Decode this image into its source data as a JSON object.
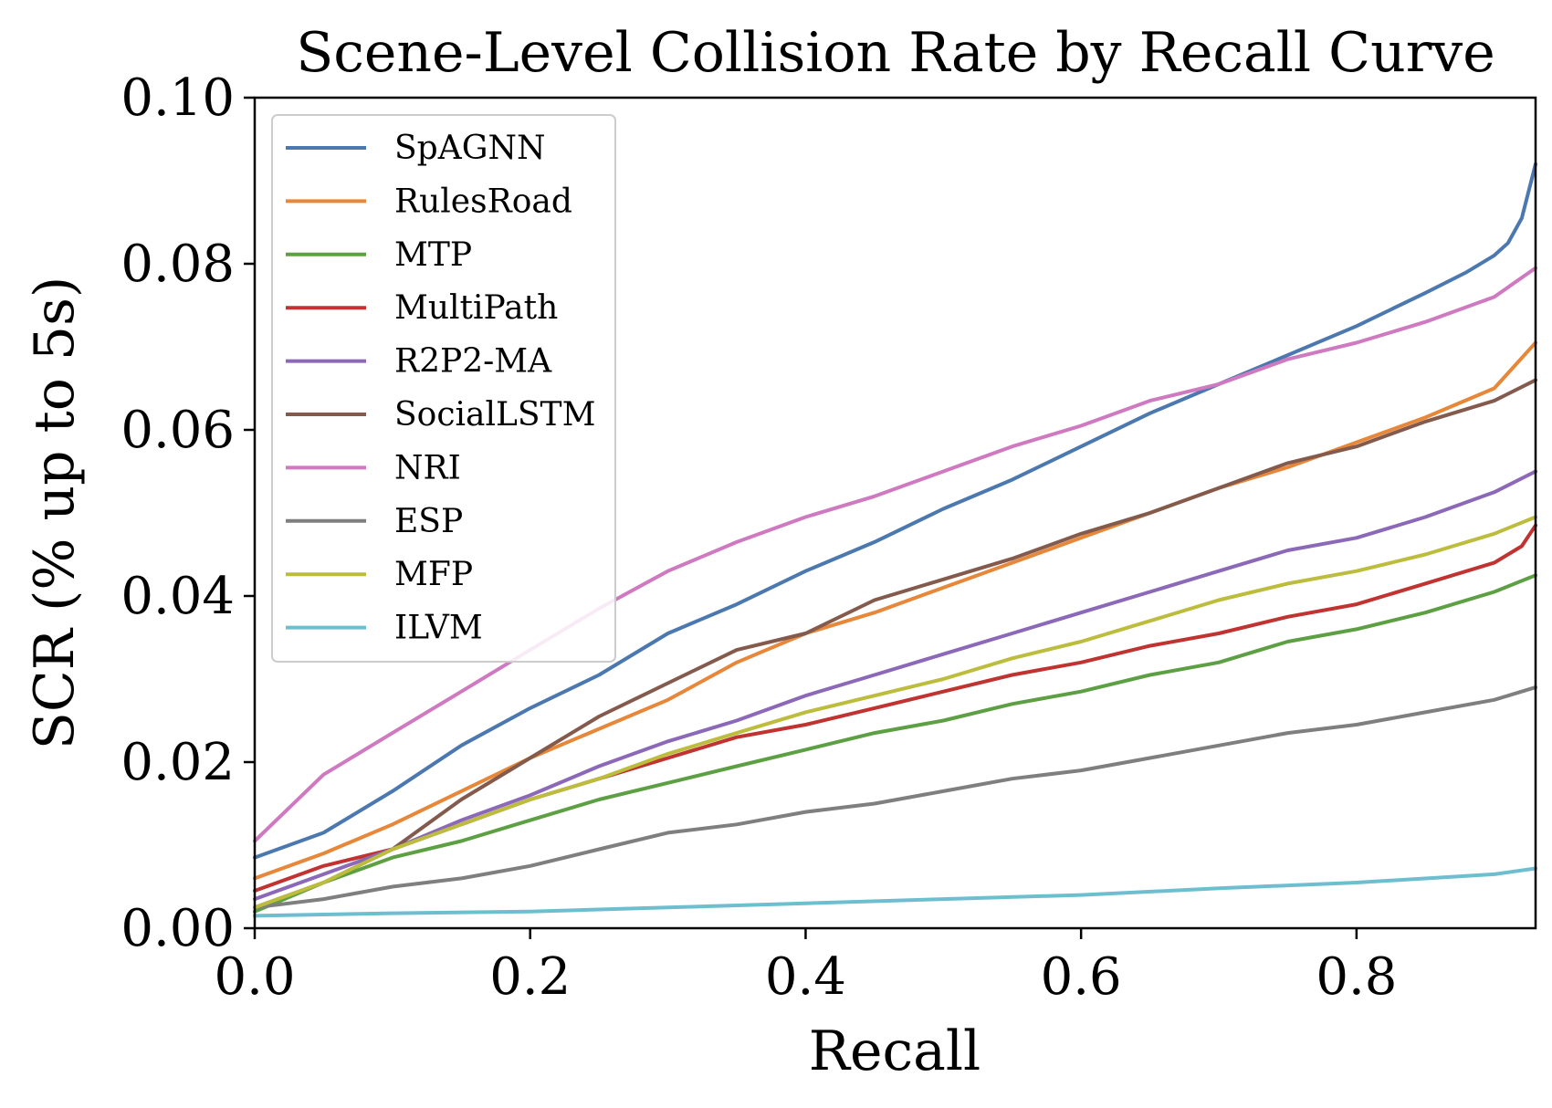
{
  "chart_data": {
    "type": "line",
    "title": "Scene-Level Collision Rate by Recall Curve",
    "xlabel": "Recall",
    "ylabel": "SCR (% up to 5s)",
    "xlim": [
      0,
      0.93
    ],
    "ylim": [
      0,
      0.1
    ],
    "xticks": [
      "0.0",
      "0.2",
      "0.4",
      "0.6",
      "0.8"
    ],
    "yticks": [
      "0.00",
      "0.02",
      "0.04",
      "0.06",
      "0.08",
      "0.10"
    ],
    "grid": false,
    "legend_position": "upper-left",
    "series": [
      {
        "name": "SpAGNN",
        "color": "#4c78b0",
        "points": [
          [
            0,
            0.0085
          ],
          [
            0.05,
            0.0115
          ],
          [
            0.1,
            0.0165
          ],
          [
            0.15,
            0.022
          ],
          [
            0.2,
            0.0265
          ],
          [
            0.25,
            0.0305
          ],
          [
            0.3,
            0.0355
          ],
          [
            0.35,
            0.039
          ],
          [
            0.4,
            0.043
          ],
          [
            0.45,
            0.0465
          ],
          [
            0.5,
            0.0505
          ],
          [
            0.55,
            0.054
          ],
          [
            0.6,
            0.058
          ],
          [
            0.65,
            0.062
          ],
          [
            0.7,
            0.0655
          ],
          [
            0.75,
            0.069
          ],
          [
            0.8,
            0.0725
          ],
          [
            0.85,
            0.0765
          ],
          [
            0.88,
            0.079
          ],
          [
            0.9,
            0.081
          ],
          [
            0.91,
            0.0825
          ],
          [
            0.92,
            0.0855
          ],
          [
            0.93,
            0.092
          ]
        ]
      },
      {
        "name": "RulesRoad",
        "color": "#e7873a",
        "points": [
          [
            0,
            0.006
          ],
          [
            0.05,
            0.009
          ],
          [
            0.1,
            0.0125
          ],
          [
            0.15,
            0.0165
          ],
          [
            0.2,
            0.0205
          ],
          [
            0.25,
            0.024
          ],
          [
            0.3,
            0.0275
          ],
          [
            0.35,
            0.032
          ],
          [
            0.4,
            0.0355
          ],
          [
            0.45,
            0.038
          ],
          [
            0.5,
            0.041
          ],
          [
            0.55,
            0.044
          ],
          [
            0.6,
            0.047
          ],
          [
            0.65,
            0.05
          ],
          [
            0.7,
            0.053
          ],
          [
            0.75,
            0.0555
          ],
          [
            0.8,
            0.0585
          ],
          [
            0.85,
            0.0615
          ],
          [
            0.9,
            0.065
          ],
          [
            0.93,
            0.0705
          ]
        ]
      },
      {
        "name": "MTP",
        "color": "#5da043",
        "points": [
          [
            0,
            0.002
          ],
          [
            0.05,
            0.0055
          ],
          [
            0.1,
            0.0085
          ],
          [
            0.15,
            0.0105
          ],
          [
            0.2,
            0.013
          ],
          [
            0.25,
            0.0155
          ],
          [
            0.3,
            0.0175
          ],
          [
            0.35,
            0.0195
          ],
          [
            0.4,
            0.0215
          ],
          [
            0.45,
            0.0235
          ],
          [
            0.5,
            0.025
          ],
          [
            0.55,
            0.027
          ],
          [
            0.6,
            0.0285
          ],
          [
            0.65,
            0.0305
          ],
          [
            0.7,
            0.032
          ],
          [
            0.75,
            0.0345
          ],
          [
            0.8,
            0.036
          ],
          [
            0.85,
            0.038
          ],
          [
            0.9,
            0.0405
          ],
          [
            0.93,
            0.0425
          ]
        ]
      },
      {
        "name": "MultiPath",
        "color": "#c03331",
        "points": [
          [
            0,
            0.0045
          ],
          [
            0.05,
            0.0075
          ],
          [
            0.1,
            0.0095
          ],
          [
            0.15,
            0.0125
          ],
          [
            0.2,
            0.0155
          ],
          [
            0.25,
            0.018
          ],
          [
            0.3,
            0.0205
          ],
          [
            0.35,
            0.023
          ],
          [
            0.4,
            0.0245
          ],
          [
            0.45,
            0.0265
          ],
          [
            0.5,
            0.0285
          ],
          [
            0.55,
            0.0305
          ],
          [
            0.6,
            0.032
          ],
          [
            0.65,
            0.034
          ],
          [
            0.7,
            0.0355
          ],
          [
            0.75,
            0.0375
          ],
          [
            0.8,
            0.039
          ],
          [
            0.85,
            0.0415
          ],
          [
            0.9,
            0.044
          ],
          [
            0.92,
            0.046
          ],
          [
            0.93,
            0.0485
          ]
        ]
      },
      {
        "name": "R2P2-MA",
        "color": "#8b69b8",
        "points": [
          [
            0,
            0.0035
          ],
          [
            0.05,
            0.0065
          ],
          [
            0.1,
            0.0095
          ],
          [
            0.15,
            0.013
          ],
          [
            0.2,
            0.016
          ],
          [
            0.25,
            0.0195
          ],
          [
            0.3,
            0.0225
          ],
          [
            0.35,
            0.025
          ],
          [
            0.4,
            0.028
          ],
          [
            0.45,
            0.0305
          ],
          [
            0.5,
            0.033
          ],
          [
            0.55,
            0.0355
          ],
          [
            0.6,
            0.038
          ],
          [
            0.65,
            0.0405
          ],
          [
            0.7,
            0.043
          ],
          [
            0.75,
            0.0455
          ],
          [
            0.8,
            0.047
          ],
          [
            0.85,
            0.0495
          ],
          [
            0.9,
            0.0525
          ],
          [
            0.93,
            0.055
          ]
        ]
      },
      {
        "name": "SocialLSTM",
        "color": "#845a4d",
        "points": [
          [
            0,
            0.0025
          ],
          [
            0.05,
            0.0055
          ],
          [
            0.1,
            0.0095
          ],
          [
            0.15,
            0.0155
          ],
          [
            0.2,
            0.0205
          ],
          [
            0.25,
            0.0255
          ],
          [
            0.3,
            0.0295
          ],
          [
            0.35,
            0.0335
          ],
          [
            0.4,
            0.0355
          ],
          [
            0.45,
            0.0395
          ],
          [
            0.5,
            0.042
          ],
          [
            0.55,
            0.0445
          ],
          [
            0.6,
            0.0475
          ],
          [
            0.65,
            0.05
          ],
          [
            0.7,
            0.053
          ],
          [
            0.75,
            0.056
          ],
          [
            0.8,
            0.058
          ],
          [
            0.85,
            0.061
          ],
          [
            0.9,
            0.0635
          ],
          [
            0.93,
            0.066
          ]
        ]
      },
      {
        "name": "NRI",
        "color": "#cf79c0",
        "points": [
          [
            0,
            0.0105
          ],
          [
            0.05,
            0.0185
          ],
          [
            0.1,
            0.0235
          ],
          [
            0.15,
            0.0285
          ],
          [
            0.2,
            0.0335
          ],
          [
            0.25,
            0.0385
          ],
          [
            0.3,
            0.043
          ],
          [
            0.35,
            0.0465
          ],
          [
            0.4,
            0.0495
          ],
          [
            0.45,
            0.052
          ],
          [
            0.5,
            0.055
          ],
          [
            0.55,
            0.058
          ],
          [
            0.6,
            0.0605
          ],
          [
            0.65,
            0.0635
          ],
          [
            0.7,
            0.0655
          ],
          [
            0.75,
            0.0685
          ],
          [
            0.8,
            0.0705
          ],
          [
            0.85,
            0.073
          ],
          [
            0.9,
            0.076
          ],
          [
            0.93,
            0.0795
          ]
        ]
      },
      {
        "name": "ESP",
        "color": "#7f7f7f",
        "points": [
          [
            0,
            0.0025
          ],
          [
            0.05,
            0.0035
          ],
          [
            0.1,
            0.005
          ],
          [
            0.15,
            0.006
          ],
          [
            0.2,
            0.0075
          ],
          [
            0.25,
            0.0095
          ],
          [
            0.3,
            0.0115
          ],
          [
            0.35,
            0.0125
          ],
          [
            0.4,
            0.014
          ],
          [
            0.45,
            0.015
          ],
          [
            0.5,
            0.0165
          ],
          [
            0.55,
            0.018
          ],
          [
            0.6,
            0.019
          ],
          [
            0.65,
            0.0205
          ],
          [
            0.7,
            0.022
          ],
          [
            0.75,
            0.0235
          ],
          [
            0.8,
            0.0245
          ],
          [
            0.85,
            0.026
          ],
          [
            0.9,
            0.0275
          ],
          [
            0.93,
            0.029
          ]
        ]
      },
      {
        "name": "MFP",
        "color": "#bcbd3c",
        "points": [
          [
            0,
            0.0025
          ],
          [
            0.05,
            0.0055
          ],
          [
            0.1,
            0.0095
          ],
          [
            0.15,
            0.0125
          ],
          [
            0.2,
            0.0155
          ],
          [
            0.25,
            0.018
          ],
          [
            0.3,
            0.021
          ],
          [
            0.35,
            0.0235
          ],
          [
            0.4,
            0.026
          ],
          [
            0.45,
            0.028
          ],
          [
            0.5,
            0.03
          ],
          [
            0.55,
            0.0325
          ],
          [
            0.6,
            0.0345
          ],
          [
            0.65,
            0.037
          ],
          [
            0.7,
            0.0395
          ],
          [
            0.75,
            0.0415
          ],
          [
            0.8,
            0.043
          ],
          [
            0.85,
            0.045
          ],
          [
            0.9,
            0.0475
          ],
          [
            0.93,
            0.0495
          ]
        ]
      },
      {
        "name": "ILVM",
        "color": "#6dbfcf",
        "points": [
          [
            0,
            0.0015
          ],
          [
            0.1,
            0.0018
          ],
          [
            0.2,
            0.002
          ],
          [
            0.3,
            0.0025
          ],
          [
            0.4,
            0.003
          ],
          [
            0.5,
            0.0035
          ],
          [
            0.6,
            0.004
          ],
          [
            0.7,
            0.0048
          ],
          [
            0.8,
            0.0055
          ],
          [
            0.9,
            0.0065
          ],
          [
            0.93,
            0.0072
          ]
        ]
      }
    ]
  }
}
